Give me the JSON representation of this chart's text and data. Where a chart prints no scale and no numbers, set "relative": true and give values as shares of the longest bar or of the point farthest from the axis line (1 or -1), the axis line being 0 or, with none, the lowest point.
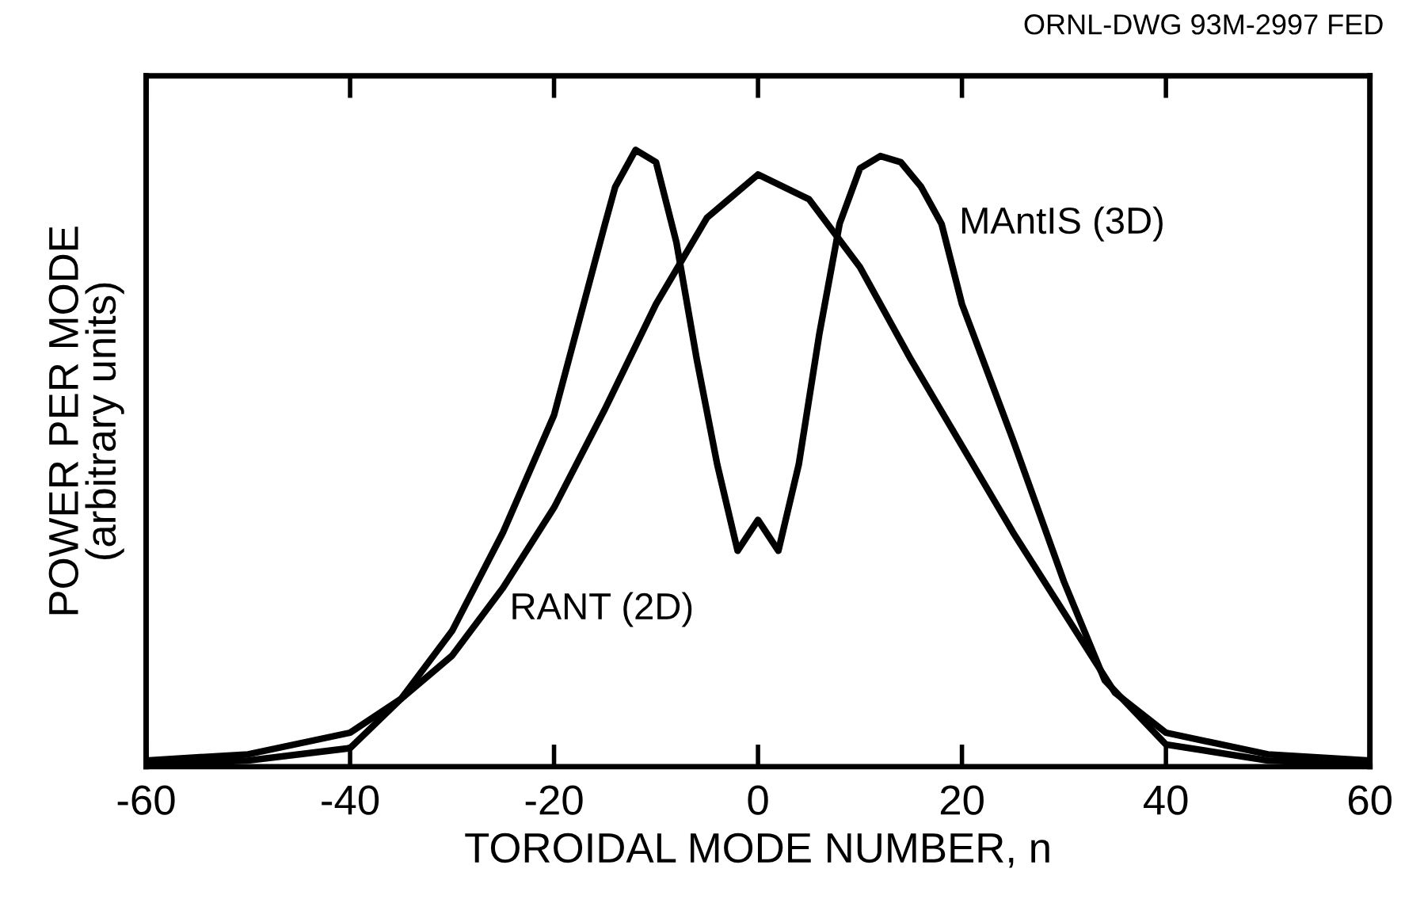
{
  "chart_data": {
    "type": "line",
    "relative": true,
    "xlabel": "TOROIDAL MODE NUMBER, n",
    "ylabel": "POWER PER MODE\n(arbitrary units)",
    "annotations": [
      "ORNL-DWG 93M-2997 FED"
    ],
    "xlim": [
      -60,
      60
    ],
    "xticks": [
      -60,
      -40,
      -20,
      0,
      20,
      40,
      60
    ],
    "grid": false,
    "legend": false,
    "marker": "none",
    "line_style": "solid",
    "series": [
      {
        "name": "MAntIS (3D)",
        "color": "#000000",
        "x": [
          -60,
          -50,
          -40,
          -35,
          -30,
          -25,
          -20,
          -15,
          -14,
          -12,
          -10,
          -8,
          -6,
          -4,
          -2,
          0,
          2,
          4,
          6,
          8,
          10,
          12,
          14,
          16,
          18,
          20,
          25,
          30,
          34,
          40,
          50,
          60
        ],
        "values": [
          0.004,
          0.01,
          0.03,
          0.11,
          0.22,
          0.38,
          0.57,
          0.88,
          0.94,
          1,
          0.98,
          0.85,
          0.66,
          0.49,
          0.35,
          0.4,
          0.35,
          0.49,
          0.7,
          0.88,
          0.97,
          0.99,
          0.98,
          0.94,
          0.88,
          0.75,
          0.53,
          0.3,
          0.14,
          0.036,
          0.01,
          0.004
        ]
      },
      {
        "name": "RANT (2D)",
        "color": "#000000",
        "x": [
          -60,
          -50,
          -40,
          -35,
          -30,
          -25,
          -20,
          -15,
          -10,
          -5,
          0,
          5,
          10,
          15,
          20,
          25,
          30,
          35,
          40,
          50,
          60
        ],
        "values": [
          0.01,
          0.02,
          0.055,
          0.11,
          0.18,
          0.29,
          0.42,
          0.58,
          0.75,
          0.89,
          0.96,
          0.92,
          0.81,
          0.66,
          0.52,
          0.38,
          0.25,
          0.12,
          0.055,
          0.02,
          0.01
        ]
      }
    ]
  }
}
